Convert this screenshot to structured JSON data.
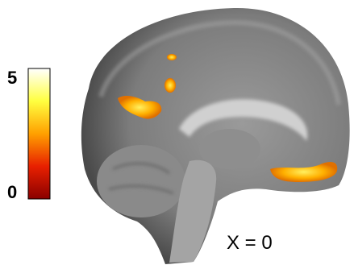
{
  "colorbar": {
    "max": 5,
    "min": 0
  },
  "slice_label": "X = 0"
}
